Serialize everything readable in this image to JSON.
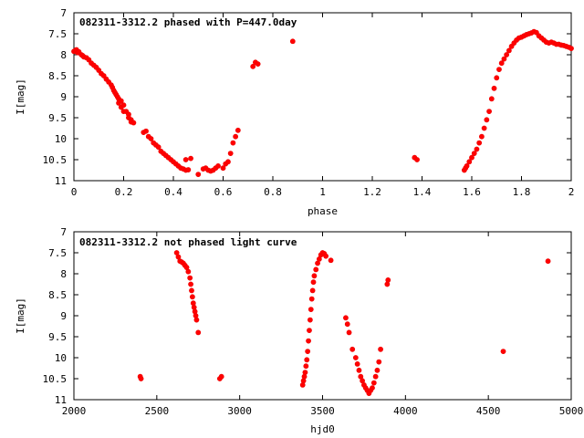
{
  "chart_data": [
    {
      "type": "scatter",
      "title": "082311-3312.2 phased with P=447.0day",
      "xlabel": "phase",
      "ylabel": "I[mag]",
      "xlim": [
        0,
        2
      ],
      "ylim": [
        11,
        7
      ],
      "y_reversed": true,
      "x_ticks": [
        0,
        0.2,
        0.4,
        0.6,
        0.8,
        1,
        1.2,
        1.4,
        1.6,
        1.8,
        2
      ],
      "x_tick_labels": [
        "0",
        "0.2",
        "0.4",
        "0.6",
        "0.8",
        "1",
        "1.2",
        "1.4",
        "1.6",
        "1.8",
        "2"
      ],
      "y_ticks": [
        7,
        7.5,
        8,
        8.5,
        9,
        9.5,
        10,
        10.5,
        11
      ],
      "y_tick_labels": [
        "7",
        "7.5",
        "8",
        "8.5",
        "9",
        "9.5",
        "10",
        "10.5",
        "11"
      ],
      "marker_color": "#ff0000",
      "grid": false,
      "legend": "none",
      "points": [
        [
          0.0,
          7.92
        ],
        [
          0.005,
          7.9
        ],
        [
          0.01,
          7.88
        ],
        [
          0.015,
          7.95
        ],
        [
          0.02,
          7.93
        ],
        [
          0.03,
          8.0
        ],
        [
          0.035,
          8.02
        ],
        [
          0.04,
          8.05
        ],
        [
          0.05,
          8.07
        ],
        [
          0.06,
          8.12
        ],
        [
          0.07,
          8.2
        ],
        [
          0.08,
          8.25
        ],
        [
          0.09,
          8.3
        ],
        [
          0.1,
          8.37
        ],
        [
          0.11,
          8.45
        ],
        [
          0.12,
          8.5
        ],
        [
          0.13,
          8.58
        ],
        [
          0.14,
          8.65
        ],
        [
          0.15,
          8.72
        ],
        [
          0.155,
          8.78
        ],
        [
          0.16,
          8.85
        ],
        [
          0.165,
          8.9
        ],
        [
          0.17,
          8.95
        ],
        [
          0.175,
          9.0
        ],
        [
          0.18,
          9.05
        ],
        [
          0.18,
          9.15
        ],
        [
          0.19,
          9.1
        ],
        [
          0.19,
          9.25
        ],
        [
          0.2,
          9.2
        ],
        [
          0.2,
          9.35
        ],
        [
          0.21,
          9.35
        ],
        [
          0.22,
          9.42
        ],
        [
          0.22,
          9.5
        ],
        [
          0.23,
          9.55
        ],
        [
          0.23,
          9.6
        ],
        [
          0.24,
          9.62
        ],
        [
          0.28,
          9.85
        ],
        [
          0.29,
          9.82
        ],
        [
          0.3,
          9.95
        ],
        [
          0.31,
          10.0
        ],
        [
          0.32,
          10.1
        ],
        [
          0.33,
          10.15
        ],
        [
          0.34,
          10.2
        ],
        [
          0.35,
          10.3
        ],
        [
          0.36,
          10.35
        ],
        [
          0.37,
          10.4
        ],
        [
          0.38,
          10.45
        ],
        [
          0.39,
          10.5
        ],
        [
          0.4,
          10.55
        ],
        [
          0.41,
          10.6
        ],
        [
          0.42,
          10.65
        ],
        [
          0.43,
          10.7
        ],
        [
          0.44,
          10.72
        ],
        [
          0.45,
          10.75
        ],
        [
          0.46,
          10.74
        ],
        [
          0.45,
          10.5
        ],
        [
          0.47,
          10.47
        ],
        [
          0.5,
          10.85
        ],
        [
          0.52,
          10.72
        ],
        [
          0.53,
          10.7
        ],
        [
          0.54,
          10.75
        ],
        [
          0.55,
          10.77
        ],
        [
          0.56,
          10.75
        ],
        [
          0.57,
          10.7
        ],
        [
          0.58,
          10.65
        ],
        [
          0.6,
          10.7
        ],
        [
          0.61,
          10.6
        ],
        [
          0.62,
          10.55
        ],
        [
          0.63,
          10.35
        ],
        [
          0.64,
          10.1
        ],
        [
          0.65,
          9.95
        ],
        [
          0.66,
          9.8
        ],
        [
          0.72,
          8.28
        ],
        [
          0.73,
          8.18
        ],
        [
          0.74,
          8.22
        ],
        [
          0.88,
          7.68
        ],
        [
          1.37,
          10.45
        ],
        [
          1.38,
          10.5
        ],
        [
          1.57,
          10.75
        ],
        [
          1.575,
          10.7
        ],
        [
          1.58,
          10.65
        ],
        [
          1.59,
          10.55
        ],
        [
          1.6,
          10.45
        ],
        [
          1.61,
          10.35
        ],
        [
          1.62,
          10.25
        ],
        [
          1.63,
          10.1
        ],
        [
          1.64,
          9.95
        ],
        [
          1.65,
          9.75
        ],
        [
          1.66,
          9.55
        ],
        [
          1.67,
          9.35
        ],
        [
          1.68,
          9.05
        ],
        [
          1.69,
          8.8
        ],
        [
          1.7,
          8.55
        ],
        [
          1.71,
          8.35
        ],
        [
          1.72,
          8.2
        ],
        [
          1.73,
          8.1
        ],
        [
          1.74,
          8.0
        ],
        [
          1.75,
          7.9
        ],
        [
          1.76,
          7.8
        ],
        [
          1.77,
          7.72
        ],
        [
          1.78,
          7.65
        ],
        [
          1.79,
          7.6
        ],
        [
          1.8,
          7.58
        ],
        [
          1.81,
          7.55
        ],
        [
          1.82,
          7.52
        ],
        [
          1.83,
          7.5
        ],
        [
          1.84,
          7.48
        ],
        [
          1.85,
          7.45
        ],
        [
          1.86,
          7.47
        ],
        [
          1.87,
          7.55
        ],
        [
          1.88,
          7.6
        ],
        [
          1.89,
          7.65
        ],
        [
          1.9,
          7.7
        ],
        [
          1.91,
          7.72
        ],
        [
          1.92,
          7.7
        ],
        [
          1.93,
          7.72
        ],
        [
          1.94,
          7.75
        ],
        [
          1.95,
          7.75
        ],
        [
          1.96,
          7.77
        ],
        [
          1.97,
          7.78
        ],
        [
          1.98,
          7.8
        ],
        [
          1.99,
          7.82
        ],
        [
          2.0,
          7.85
        ]
      ]
    },
    {
      "type": "scatter",
      "title": "082311-3312.2 not phased light curve",
      "xlabel": "hjd0",
      "ylabel": "I[mag]",
      "xlim": [
        2000,
        5000
      ],
      "ylim": [
        11,
        7
      ],
      "y_reversed": true,
      "x_ticks": [
        2000,
        2500,
        3000,
        3500,
        4000,
        4500,
        5000
      ],
      "x_tick_labels": [
        "2000",
        "2500",
        "3000",
        "3500",
        "4000",
        "4500",
        "5000"
      ],
      "y_ticks": [
        7,
        7.5,
        8,
        8.5,
        9,
        9.5,
        10,
        10.5,
        11
      ],
      "y_tick_labels": [
        "7",
        "7.5",
        "8",
        "8.5",
        "9",
        "9.5",
        "10",
        "10.5",
        "11"
      ],
      "marker_color": "#ff0000",
      "grid": false,
      "legend": "none",
      "points": [
        [
          2400,
          10.45
        ],
        [
          2405,
          10.5
        ],
        [
          2620,
          7.5
        ],
        [
          2630,
          7.6
        ],
        [
          2640,
          7.7
        ],
        [
          2650,
          7.72
        ],
        [
          2660,
          7.75
        ],
        [
          2670,
          7.8
        ],
        [
          2680,
          7.85
        ],
        [
          2690,
          7.95
        ],
        [
          2700,
          8.1
        ],
        [
          2705,
          8.25
        ],
        [
          2710,
          8.4
        ],
        [
          2715,
          8.55
        ],
        [
          2720,
          8.7
        ],
        [
          2725,
          8.8
        ],
        [
          2730,
          8.9
        ],
        [
          2735,
          9.0
        ],
        [
          2740,
          9.1
        ],
        [
          2750,
          9.4
        ],
        [
          2880,
          10.5
        ],
        [
          2890,
          10.45
        ],
        [
          3380,
          10.65
        ],
        [
          3385,
          10.55
        ],
        [
          3390,
          10.45
        ],
        [
          3395,
          10.35
        ],
        [
          3400,
          10.2
        ],
        [
          3405,
          10.05
        ],
        [
          3410,
          9.85
        ],
        [
          3415,
          9.6
        ],
        [
          3420,
          9.35
        ],
        [
          3425,
          9.1
        ],
        [
          3430,
          8.85
        ],
        [
          3435,
          8.6
        ],
        [
          3440,
          8.4
        ],
        [
          3445,
          8.2
        ],
        [
          3450,
          8.05
        ],
        [
          3460,
          7.9
        ],
        [
          3470,
          7.75
        ],
        [
          3480,
          7.65
        ],
        [
          3490,
          7.55
        ],
        [
          3500,
          7.5
        ],
        [
          3510,
          7.52
        ],
        [
          3520,
          7.58
        ],
        [
          3550,
          7.68
        ],
        [
          3640,
          9.05
        ],
        [
          3650,
          9.2
        ],
        [
          3660,
          9.4
        ],
        [
          3680,
          9.8
        ],
        [
          3700,
          10.0
        ],
        [
          3710,
          10.15
        ],
        [
          3720,
          10.3
        ],
        [
          3730,
          10.45
        ],
        [
          3740,
          10.55
        ],
        [
          3750,
          10.65
        ],
        [
          3760,
          10.72
        ],
        [
          3770,
          10.78
        ],
        [
          3780,
          10.85
        ],
        [
          3790,
          10.78
        ],
        [
          3800,
          10.72
        ],
        [
          3810,
          10.6
        ],
        [
          3820,
          10.45
        ],
        [
          3830,
          10.3
        ],
        [
          3840,
          10.1
        ],
        [
          3850,
          9.8
        ],
        [
          3890,
          8.25
        ],
        [
          3895,
          8.15
        ],
        [
          4590,
          9.85
        ],
        [
          4860,
          7.7
        ]
      ]
    }
  ]
}
